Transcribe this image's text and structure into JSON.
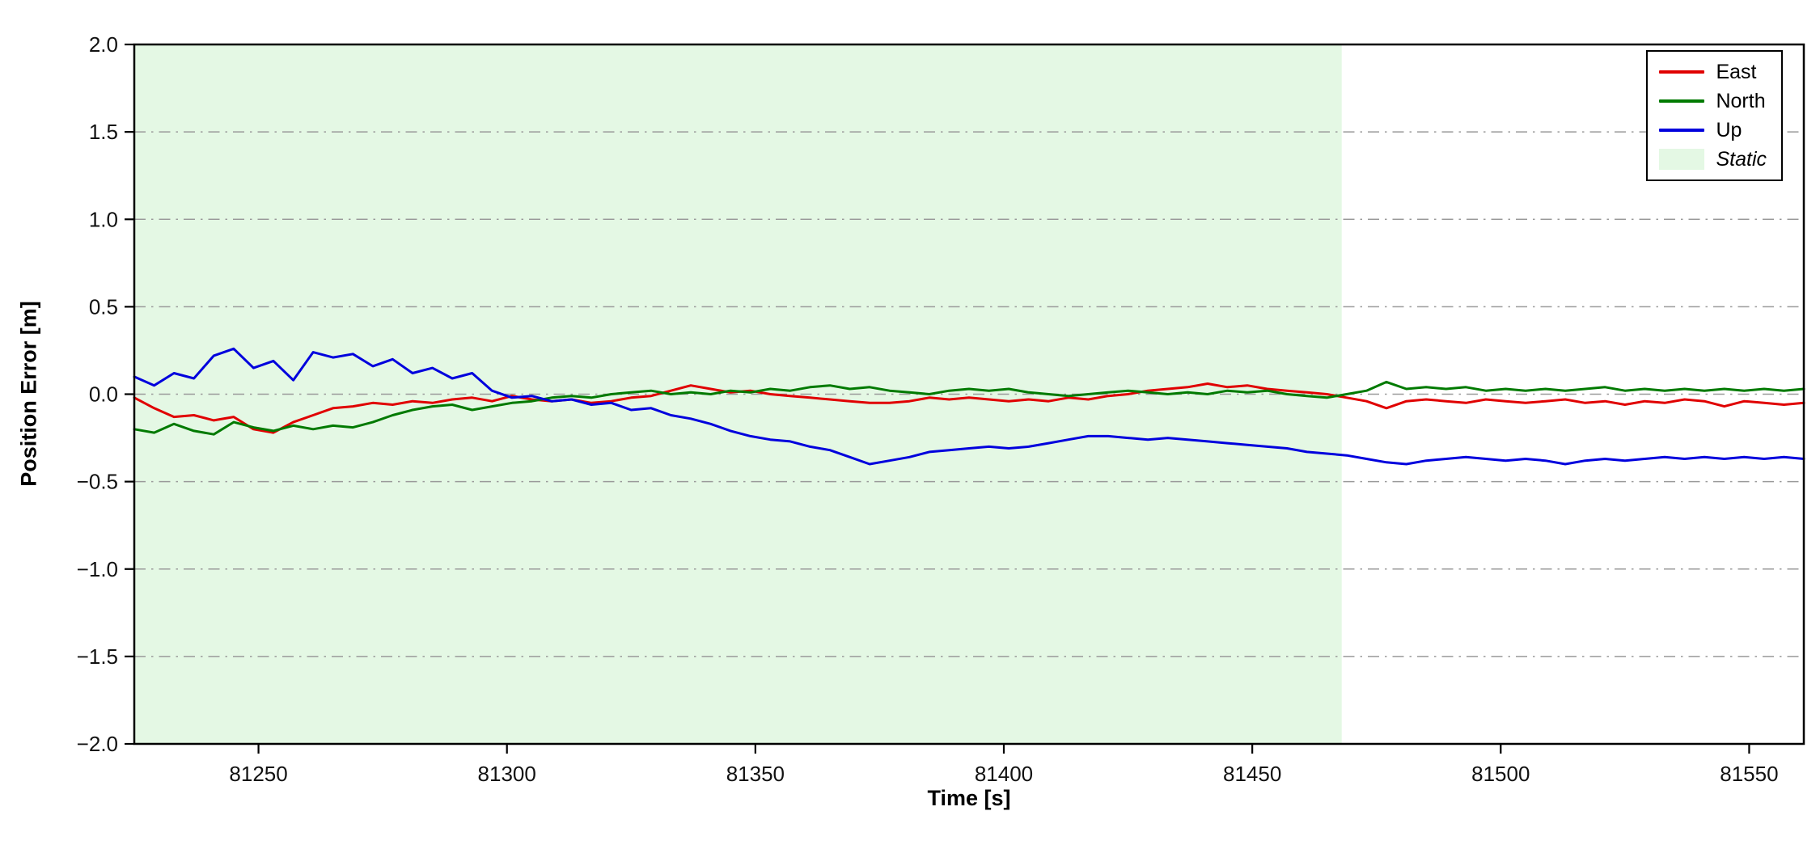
{
  "figure": {
    "background": "#ffffff",
    "axis_color": "#000000",
    "grid_color": "#9a9a9a"
  },
  "chart_data": {
    "type": "line",
    "title": "",
    "xlabel": "Time [s]",
    "ylabel": "Position Error [m]",
    "xlim": [
      81225,
      81561
    ],
    "ylim": [
      -2.0,
      2.0
    ],
    "xticks": [
      81250,
      81300,
      81350,
      81400,
      81450,
      81500,
      81550
    ],
    "yticks": [
      -2.0,
      -1.5,
      -1.0,
      -0.5,
      0.0,
      0.5,
      1.0,
      1.5,
      2.0
    ],
    "grid": "horizontal dash-dot",
    "legend_position": "upper right",
    "static_region": {
      "label": "Static",
      "x_start": 81225,
      "x_end": 81468,
      "color": "#e4f8e4"
    },
    "x": [
      81225,
      81229,
      81233,
      81237,
      81241,
      81245,
      81249,
      81253,
      81257,
      81261,
      81265,
      81269,
      81273,
      81277,
      81281,
      81285,
      81289,
      81293,
      81297,
      81301,
      81305,
      81309,
      81313,
      81317,
      81321,
      81325,
      81329,
      81333,
      81337,
      81341,
      81345,
      81349,
      81353,
      81357,
      81361,
      81365,
      81369,
      81373,
      81377,
      81381,
      81385,
      81389,
      81393,
      81397,
      81401,
      81405,
      81409,
      81413,
      81417,
      81421,
      81425,
      81429,
      81433,
      81437,
      81441,
      81445,
      81449,
      81453,
      81457,
      81461,
      81465,
      81469,
      81473,
      81477,
      81481,
      81485,
      81489,
      81493,
      81497,
      81501,
      81505,
      81509,
      81513,
      81517,
      81521,
      81525,
      81529,
      81533,
      81537,
      81541,
      81545,
      81549,
      81553,
      81557,
      81561
    ],
    "series": [
      {
        "name": "East",
        "color": "#e00000",
        "values": [
          -0.02,
          -0.08,
          -0.13,
          -0.12,
          -0.15,
          -0.13,
          -0.2,
          -0.22,
          -0.16,
          -0.12,
          -0.08,
          -0.07,
          -0.05,
          -0.06,
          -0.04,
          -0.05,
          -0.03,
          -0.02,
          -0.04,
          -0.01,
          -0.03,
          -0.04,
          -0.03,
          -0.05,
          -0.04,
          -0.02,
          -0.01,
          0.02,
          0.05,
          0.03,
          0.01,
          0.02,
          0.0,
          -0.01,
          -0.02,
          -0.03,
          -0.04,
          -0.05,
          -0.05,
          -0.04,
          -0.02,
          -0.03,
          -0.02,
          -0.03,
          -0.04,
          -0.03,
          -0.04,
          -0.02,
          -0.03,
          -0.01,
          0.0,
          0.02,
          0.03,
          0.04,
          0.06,
          0.04,
          0.05,
          0.03,
          0.02,
          0.01,
          0.0,
          -0.02,
          -0.04,
          -0.08,
          -0.04,
          -0.03,
          -0.04,
          -0.05,
          -0.03,
          -0.04,
          -0.05,
          -0.04,
          -0.03,
          -0.05,
          -0.04,
          -0.06,
          -0.04,
          -0.05,
          -0.03,
          -0.04,
          -0.07,
          -0.04,
          -0.05,
          -0.06,
          -0.05
        ]
      },
      {
        "name": "North",
        "color": "#007a00",
        "values": [
          -0.2,
          -0.22,
          -0.17,
          -0.21,
          -0.23,
          -0.16,
          -0.19,
          -0.21,
          -0.18,
          -0.2,
          -0.18,
          -0.19,
          -0.16,
          -0.12,
          -0.09,
          -0.07,
          -0.06,
          -0.09,
          -0.07,
          -0.05,
          -0.04,
          -0.02,
          -0.01,
          -0.02,
          0.0,
          0.01,
          0.02,
          0.0,
          0.01,
          0.0,
          0.02,
          0.01,
          0.03,
          0.02,
          0.04,
          0.05,
          0.03,
          0.04,
          0.02,
          0.01,
          0.0,
          0.02,
          0.03,
          0.02,
          0.03,
          0.01,
          0.0,
          -0.01,
          0.0,
          0.01,
          0.02,
          0.01,
          0.0,
          0.01,
          0.0,
          0.02,
          0.01,
          0.02,
          0.0,
          -0.01,
          -0.02,
          0.0,
          0.02,
          0.07,
          0.03,
          0.04,
          0.03,
          0.04,
          0.02,
          0.03,
          0.02,
          0.03,
          0.02,
          0.03,
          0.04,
          0.02,
          0.03,
          0.02,
          0.03,
          0.02,
          0.03,
          0.02,
          0.03,
          0.02,
          0.03
        ]
      },
      {
        "name": "Up",
        "color": "#0000dd",
        "values": [
          0.1,
          0.05,
          0.12,
          0.09,
          0.22,
          0.26,
          0.15,
          0.19,
          0.08,
          0.24,
          0.21,
          0.23,
          0.16,
          0.2,
          0.12,
          0.15,
          0.09,
          0.12,
          0.02,
          -0.02,
          -0.01,
          -0.04,
          -0.03,
          -0.06,
          -0.05,
          -0.09,
          -0.08,
          -0.12,
          -0.14,
          -0.17,
          -0.21,
          -0.24,
          -0.26,
          -0.27,
          -0.3,
          -0.32,
          -0.36,
          -0.4,
          -0.38,
          -0.36,
          -0.33,
          -0.32,
          -0.31,
          -0.3,
          -0.31,
          -0.3,
          -0.28,
          -0.26,
          -0.24,
          -0.24,
          -0.25,
          -0.26,
          -0.25,
          -0.26,
          -0.27,
          -0.28,
          -0.29,
          -0.3,
          -0.31,
          -0.33,
          -0.34,
          -0.35,
          -0.37,
          -0.39,
          -0.4,
          -0.38,
          -0.37,
          -0.36,
          -0.37,
          -0.38,
          -0.37,
          -0.38,
          -0.4,
          -0.38,
          -0.37,
          -0.38,
          -0.37,
          -0.36,
          -0.37,
          -0.36,
          -0.37,
          -0.36,
          -0.37,
          -0.36,
          -0.37
        ]
      }
    ],
    "legend": [
      "East",
      "North",
      "Up",
      "Static"
    ]
  }
}
